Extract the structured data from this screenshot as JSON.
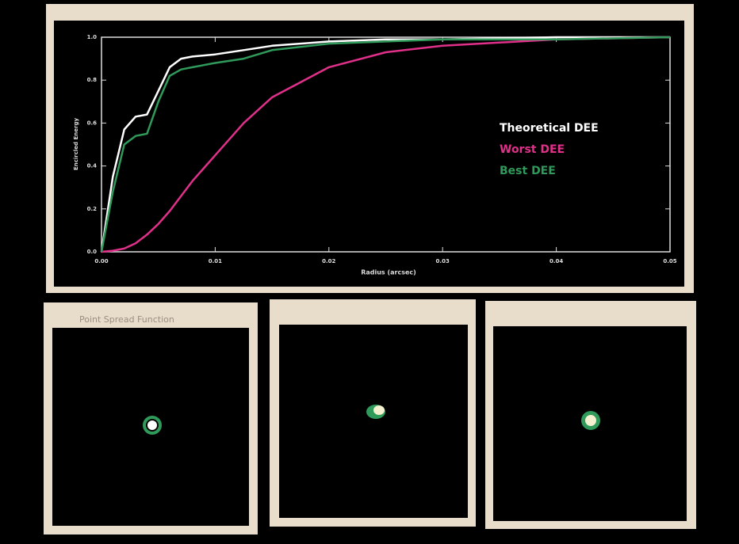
{
  "chart_data": {
    "type": "line",
    "x_label": "Radius (arcsec)",
    "y_label": "Encircled Energy",
    "x": [
      0,
      0.001,
      0.002,
      0.003,
      0.004,
      0.005,
      0.006,
      0.007,
      0.008,
      0.01,
      0.0125,
      0.015,
      0.02,
      0.025,
      0.03,
      0.04,
      0.05
    ],
    "series": [
      {
        "name": "Theoretical DEE",
        "color": "#ffffff",
        "values": [
          0,
          0.35,
          0.57,
          0.63,
          0.64,
          0.75,
          0.86,
          0.9,
          0.91,
          0.92,
          0.94,
          0.96,
          0.98,
          0.99,
          0.99,
          1.0,
          1.0
        ]
      },
      {
        "name": "Worst DEE",
        "color": "#e0308a",
        "values": [
          0,
          0.005,
          0.015,
          0.04,
          0.08,
          0.13,
          0.19,
          0.26,
          0.33,
          0.45,
          0.6,
          0.72,
          0.86,
          0.93,
          0.96,
          0.99,
          1.0
        ]
      },
      {
        "name": "Best DEE",
        "color": "#2f9a5a",
        "values": [
          0,
          0.28,
          0.5,
          0.54,
          0.55,
          0.7,
          0.82,
          0.85,
          0.86,
          0.88,
          0.9,
          0.94,
          0.97,
          0.98,
          0.99,
          0.99,
          1.0
        ]
      }
    ],
    "xlim": [
      0,
      0.05
    ],
    "xticks": [
      {
        "value": 0,
        "label": "0.00"
      },
      0.01,
      0.02,
      0.03,
      0.04,
      0.05
    ],
    "ylim": [
      0,
      1
    ],
    "yticks": [
      {
        "value": 0,
        "label": "0.0"
      },
      0.2,
      0.4,
      0.6,
      0.8,
      {
        "value": 1,
        "label": "1.0"
      }
    ]
  },
  "panels": {
    "title": "Point Spread Function"
  }
}
